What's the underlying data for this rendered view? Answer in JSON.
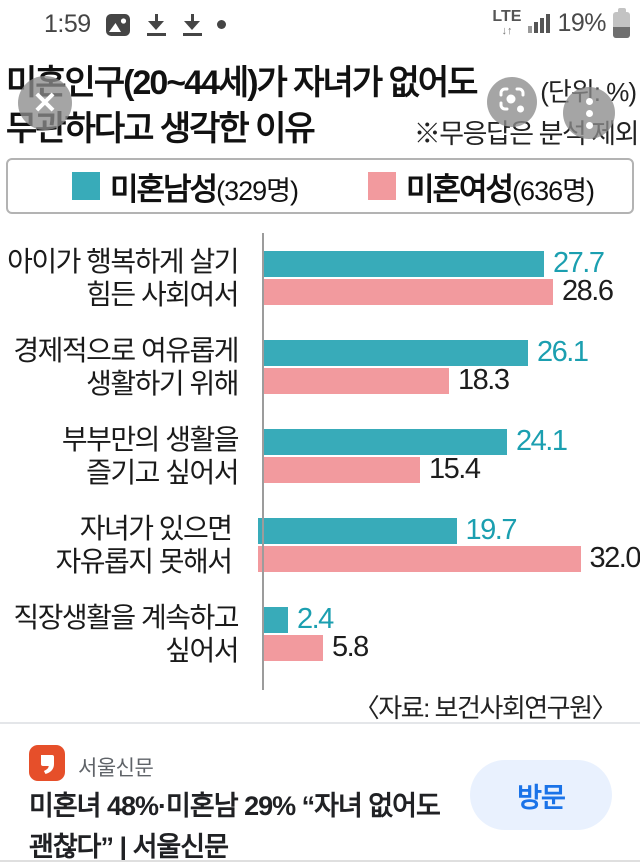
{
  "status_bar": {
    "time": "1:59",
    "left_icons": [
      "image-thumbnail-icon",
      "download-icon",
      "download-icon",
      "notification-dot"
    ],
    "network_type": "LTE",
    "battery_percent": "19%"
  },
  "header": {
    "title_line1": "미혼인구(20~44세)가 자녀가 없어도",
    "title_line2": "무관하다고 생각한 이유",
    "unit_note": "(단위: %)",
    "footnote": "※무응답은 분석 제외"
  },
  "overlay": {
    "close_glyph": "✕"
  },
  "chart_data": {
    "type": "bar",
    "orientation": "horizontal",
    "title": "미혼인구(20~44세)가 자녀가 없어도 무관하다고 생각한 이유",
    "unit": "%",
    "legend_position": "top",
    "grid": false,
    "xlim": [
      0,
      34
    ],
    "categories": [
      "아이가 행복하게 살기\n힘든 사회여서",
      "경제적으로 여유롭게\n생활하기 위해",
      "부부만의 생활을\n즐기고 싶어서",
      "자녀가 있으면\n자유롭지 못해서",
      "직장생활을 계속하고\n싶어서"
    ],
    "series": [
      {
        "name": "미혼남성",
        "count": "(329명)",
        "color": "#38abb9",
        "value_color": "#1b9fb0",
        "values": [
          27.7,
          26.1,
          24.1,
          19.7,
          2.4
        ]
      },
      {
        "name": "미혼여성",
        "count": "(636명)",
        "color": "#f29a9e",
        "value_color": "#1d1d1d",
        "values": [
          28.6,
          18.3,
          15.4,
          32.0,
          5.8
        ]
      }
    ],
    "source": "〈자료: 보건사회연구원〉"
  },
  "news_card": {
    "publisher": "서울신문",
    "headline": "미혼녀 48%·미혼남 29% “자녀 없어도 괜찮다” | 서울신문",
    "visit_button": "방문"
  },
  "colors": {
    "male_bar": "#38abb9",
    "female_bar": "#f29a9e",
    "visit_button_bg": "#e9f1fe",
    "visit_button_text": "#1a73e8",
    "publisher_logo": "#e64f2a"
  }
}
